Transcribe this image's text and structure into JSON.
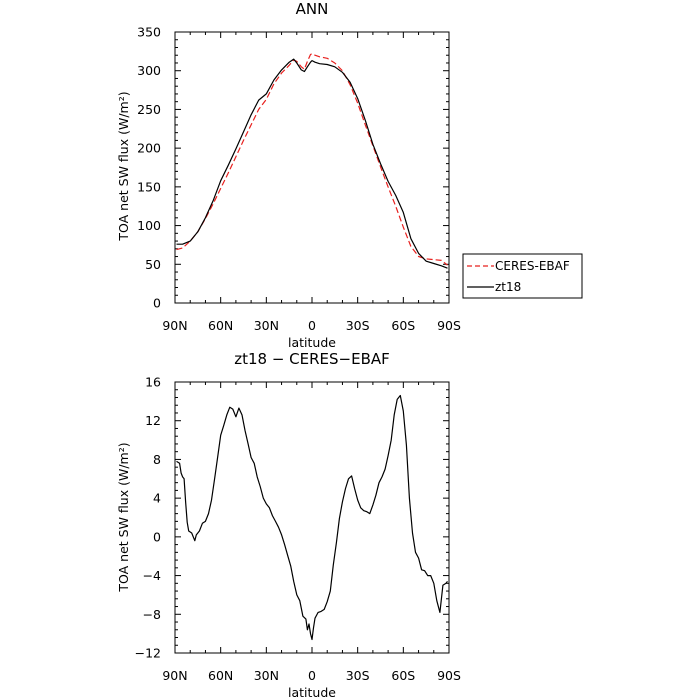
{
  "chart_data": [
    {
      "type": "line",
      "title": "ANN",
      "xlabel": "latitude",
      "ylabel": "TOA net SW flux (W/m²)",
      "xlim": [
        90,
        -90
      ],
      "ylim": [
        0,
        350
      ],
      "xticks": [
        90,
        60,
        30,
        0,
        -30,
        -60,
        -90
      ],
      "xtick_labels": [
        "90N",
        "60N",
        "30N",
        "0",
        "30S",
        "60S",
        "90S"
      ],
      "yticks": [
        0,
        50,
        100,
        150,
        200,
        250,
        300,
        350
      ],
      "ytick_labels": [
        "0",
        "50",
        "100",
        "150",
        "200",
        "250",
        "300",
        "350"
      ],
      "legend": "right",
      "series": [
        {
          "name": "CERES-EBAF",
          "color": "#e8201e",
          "dash": "dashed",
          "x": [
            89,
            85,
            80,
            75,
            70,
            65,
            60,
            55,
            50,
            45,
            40,
            35,
            30,
            25,
            20,
            15,
            12,
            10,
            7,
            5,
            3,
            1,
            0,
            -2,
            -5,
            -10,
            -15,
            -20,
            -25,
            -30,
            -35,
            -40,
            -45,
            -50,
            -55,
            -60,
            -65,
            -70,
            -75,
            -80,
            -85,
            -89
          ],
          "y": [
            69,
            71,
            80,
            92,
            109,
            128,
            148,
            168,
            189,
            210,
            230,
            250,
            263,
            283,
            297,
            307,
            314,
            312,
            305,
            302,
            312,
            321,
            322,
            320,
            318,
            316,
            310,
            300,
            282,
            258,
            230,
            203,
            176,
            150,
            125,
            98,
            73,
            60,
            57,
            56,
            55,
            49
          ]
        },
        {
          "name": "zt18",
          "color": "#000000",
          "dash": "solid",
          "x": [
            89,
            85,
            80,
            75,
            70,
            65,
            60,
            55,
            50,
            45,
            40,
            35,
            30,
            25,
            20,
            15,
            12,
            10,
            7,
            5,
            3,
            1,
            0,
            -2,
            -5,
            -10,
            -15,
            -20,
            -25,
            -30,
            -35,
            -40,
            -45,
            -50,
            -55,
            -60,
            -65,
            -70,
            -75,
            -80,
            -85,
            -89
          ],
          "y": [
            76,
            76,
            80,
            92,
            110,
            132,
            158,
            178,
            199,
            221,
            243,
            262,
            270,
            288,
            301,
            311,
            315,
            310,
            301,
            299,
            305,
            311,
            313,
            311,
            309,
            308,
            305,
            298,
            285,
            264,
            236,
            205,
            180,
            157,
            139,
            117,
            83,
            64,
            54,
            51,
            48,
            45
          ]
        }
      ]
    },
    {
      "type": "line",
      "title": "zt18 − CERES−EBAF",
      "xlabel": "latitude",
      "ylabel": "TOA net SW flux (W/m²)",
      "xlim": [
        90,
        -90
      ],
      "ylim": [
        -12,
        16
      ],
      "xticks": [
        90,
        60,
        30,
        0,
        -30,
        -60,
        -90
      ],
      "xtick_labels": [
        "90N",
        "60N",
        "30N",
        "0",
        "30S",
        "60S",
        "90S"
      ],
      "yticks": [
        -12,
        -8,
        -4,
        0,
        4,
        8,
        12,
        16
      ],
      "ytick_labels": [
        "−12",
        "−8",
        "−4",
        "0",
        "4",
        "8",
        "12",
        "16"
      ],
      "series": [
        {
          "color": "#000000",
          "dash": "solid",
          "x": [
            89,
            87,
            86,
            85,
            84,
            83,
            82,
            81,
            79,
            77,
            76,
            74,
            72,
            70,
            68,
            66,
            64,
            62,
            60,
            58,
            56,
            54,
            52,
            50,
            48,
            46,
            44,
            42,
            40,
            38,
            36,
            34,
            32,
            30,
            28,
            26,
            24,
            22,
            20,
            18,
            16,
            14,
            12,
            10,
            8,
            6,
            4,
            3,
            2,
            1,
            0,
            -1,
            -2,
            -4,
            -6,
            -8,
            -10,
            -12,
            -14,
            -16,
            -18,
            -20,
            -22,
            -24,
            -26,
            -28,
            -30,
            -32,
            -34,
            -36,
            -38,
            -40,
            -42,
            -44,
            -46,
            -48,
            -50,
            -52,
            -54,
            -56,
            -58,
            -60,
            -62,
            -64,
            -66,
            -68,
            -70,
            -72,
            -74,
            -76,
            -78,
            -80,
            -82,
            -84,
            -86,
            -88,
            -89
          ],
          "y": [
            7.8,
            7.6,
            6.6,
            6.2,
            6.0,
            3.5,
            1.5,
            0.6,
            0.4,
            -0.4,
            0.2,
            0.6,
            1.4,
            1.6,
            2.4,
            3.8,
            6.0,
            8.2,
            10.5,
            11.5,
            12.6,
            13.4,
            13.2,
            12.4,
            13.3,
            12.6,
            11.0,
            9.6,
            8.2,
            7.6,
            6.2,
            5.2,
            4.0,
            3.4,
            3.0,
            2.2,
            1.6,
            1.0,
            0.2,
            -0.8,
            -1.9,
            -3.0,
            -4.6,
            -6.0,
            -6.6,
            -8.2,
            -8.5,
            -9.6,
            -9.0,
            -10.0,
            -10.6,
            -9.4,
            -8.4,
            -7.8,
            -7.7,
            -7.5,
            -6.7,
            -5.6,
            -2.9,
            -0.6,
            1.9,
            3.6,
            5.0,
            6.0,
            6.3,
            5.0,
            3.8,
            3.0,
            2.7,
            2.6,
            2.4,
            3.3,
            4.3,
            5.6,
            6.2,
            7.0,
            8.4,
            10.0,
            12.6,
            14.2,
            14.6,
            13.0,
            9.5,
            4.0,
            0.4,
            -1.6,
            -2.2,
            -3.4,
            -3.5,
            -4.0,
            -4.0,
            -4.8,
            -6.6,
            -7.8,
            -5.0,
            -4.8,
            -4.6
          ]
        }
      ]
    }
  ]
}
